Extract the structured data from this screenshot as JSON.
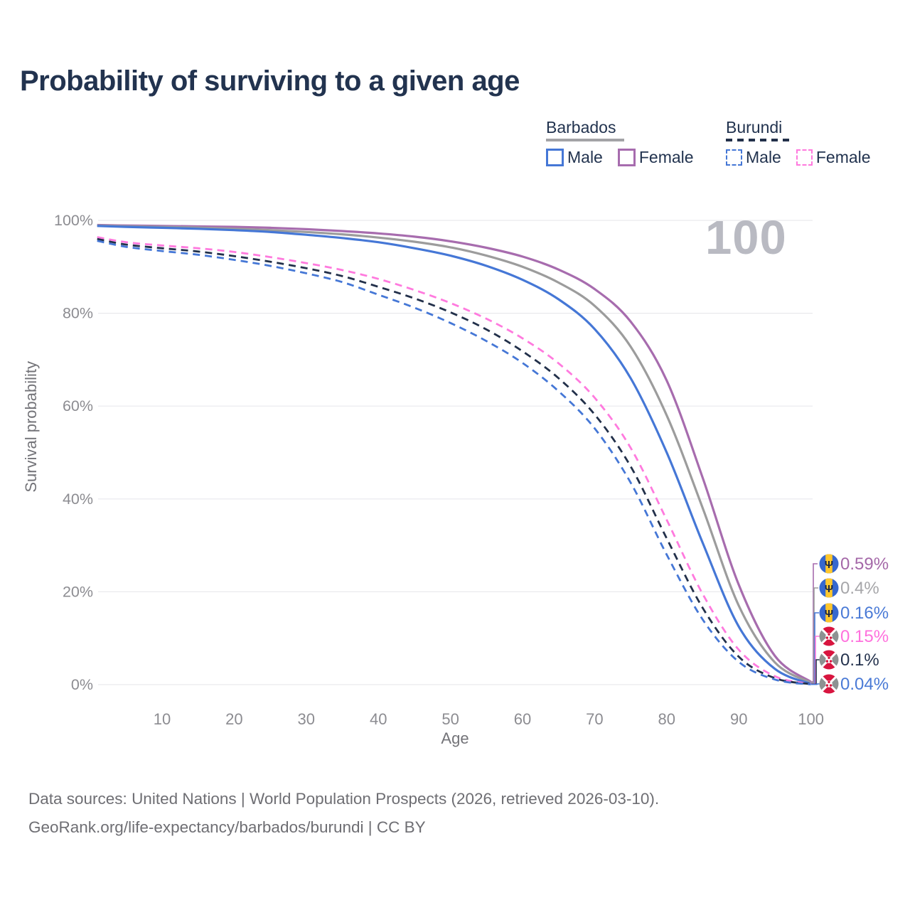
{
  "title": "Probability of surviving to a given age",
  "age_watermark": "100",
  "legend": {
    "groups": [
      {
        "country": "Barbados",
        "line_style": "solid",
        "underline_color": "#a3a3a6",
        "items": [
          {
            "label": "Male",
            "color": "#4577d6"
          },
          {
            "label": "Female",
            "color": "#a76cae"
          }
        ]
      },
      {
        "country": "Burundi",
        "line_style": "dashed",
        "underline_color": "#22304a",
        "items": [
          {
            "label": "Male",
            "color": "#4577d6"
          },
          {
            "label": "Female",
            "color": "#ff7ade"
          }
        ]
      }
    ]
  },
  "chart_data": {
    "type": "line",
    "title": "Probability of surviving to a given age",
    "xlabel": "Age",
    "ylabel": "Survival probability",
    "xlim": [
      1,
      100
    ],
    "ylim": [
      0,
      100
    ],
    "grid": "horizontal",
    "grid_color": "#e9e9ed",
    "axis_tick_color": "#8c8c91",
    "x_ticks": [
      10,
      20,
      30,
      40,
      50,
      60,
      70,
      80,
      90,
      100
    ],
    "y_ticks": [
      "100%",
      "80%",
      "60%",
      "40%",
      "20%",
      "0%"
    ],
    "legend_position": "top-right",
    "x": [
      1,
      5,
      10,
      15,
      20,
      25,
      30,
      35,
      40,
      45,
      50,
      55,
      60,
      65,
      70,
      75,
      80,
      85,
      90,
      95,
      100
    ],
    "series": [
      {
        "name": "Barbados Female",
        "country": "Barbados",
        "sex": "Female",
        "color": "#a76cae",
        "dash": "solid",
        "flag": "barbados",
        "end_label": "0.59%",
        "end_label_color": "#a468a8",
        "values": [
          99.0,
          98.9,
          98.8,
          98.7,
          98.6,
          98.4,
          98.1,
          97.7,
          97.2,
          96.5,
          95.5,
          94.1,
          92.2,
          89.4,
          85.2,
          78.2,
          65.5,
          44.5,
          21.5,
          6.2,
          0.59
        ]
      },
      {
        "name": "Barbados (both sexes)",
        "country": "Barbados",
        "sex": "All",
        "color": "#9c9c9c",
        "dash": "solid",
        "flag": "barbados",
        "end_label": "0.4%",
        "end_label_color": "#a6a6a9",
        "values": [
          98.9,
          98.75,
          98.6,
          98.45,
          98.2,
          97.9,
          97.5,
          97.0,
          96.3,
          95.4,
          94.2,
          92.4,
          90.0,
          86.6,
          81.6,
          72.8,
          58.0,
          38.0,
          17.0,
          4.8,
          0.4
        ]
      },
      {
        "name": "Barbados Male",
        "country": "Barbados",
        "sex": "Male",
        "color": "#4577d6",
        "dash": "solid",
        "flag": "barbados",
        "end_label": "0.16%",
        "end_label_color": "#4a7ad6",
        "values": [
          98.8,
          98.6,
          98.4,
          98.2,
          97.9,
          97.5,
          96.9,
          96.2,
          95.3,
          94.0,
          92.4,
          90.2,
          87.2,
          83.0,
          76.6,
          66.0,
          50.0,
          30.5,
          12.5,
          3.4,
          0.16
        ]
      },
      {
        "name": "Burundi Female",
        "country": "Burundi",
        "sex": "Female",
        "color": "#ff7ade",
        "dash": "dashed",
        "flag": "burundi",
        "end_label": "0.15%",
        "end_label_color": "#ff70dd",
        "values": [
          96.4,
          95.3,
          94.6,
          94.0,
          93.2,
          92.1,
          90.8,
          89.3,
          87.4,
          85.0,
          82.2,
          78.8,
          74.6,
          69.2,
          61.8,
          51.0,
          35.5,
          19.5,
          7.5,
          1.8,
          0.15
        ]
      },
      {
        "name": "Burundi (both sexes)",
        "country": "Burundi",
        "sex": "All",
        "color": "#22304a",
        "dash": "dashed",
        "flag": "burundi",
        "end_label": "0.1%",
        "end_label_color": "#24324d",
        "values": [
          96.0,
          94.8,
          94.0,
          93.3,
          92.3,
          91.1,
          89.7,
          88.0,
          85.7,
          83.2,
          80.2,
          76.5,
          71.8,
          66.0,
          58.2,
          47.0,
          31.5,
          16.5,
          6.0,
          1.4,
          0.1
        ]
      },
      {
        "name": "Burundi Male",
        "country": "Burundi",
        "sex": "Male",
        "color": "#4577d6",
        "dash": "dashed",
        "flag": "burundi",
        "end_label": "0.04%",
        "end_label_color": "#4a7ad6",
        "values": [
          95.6,
          94.3,
          93.4,
          92.6,
          91.5,
          90.2,
          88.6,
          86.7,
          84.0,
          81.2,
          77.9,
          74.0,
          69.3,
          63.2,
          55.2,
          43.5,
          28.0,
          14.0,
          4.9,
          1.1,
          0.04
        ]
      }
    ]
  },
  "icons": {
    "barbados_flag": {
      "blue": "#3668cf",
      "yellow": "#ffc72c",
      "trident": "#1a2644",
      "glyph": "Ψ"
    },
    "burundi_flag": {
      "red": "#d8153f",
      "side": "#8d9292",
      "cross": "#ffffff"
    }
  },
  "footer": {
    "line1": "Data sources: United Nations | World Population Prospects (2026, retrieved 2026-03-10).",
    "line2": "GeoRank.org/life-expectancy/barbados/burundi | CC BY"
  }
}
